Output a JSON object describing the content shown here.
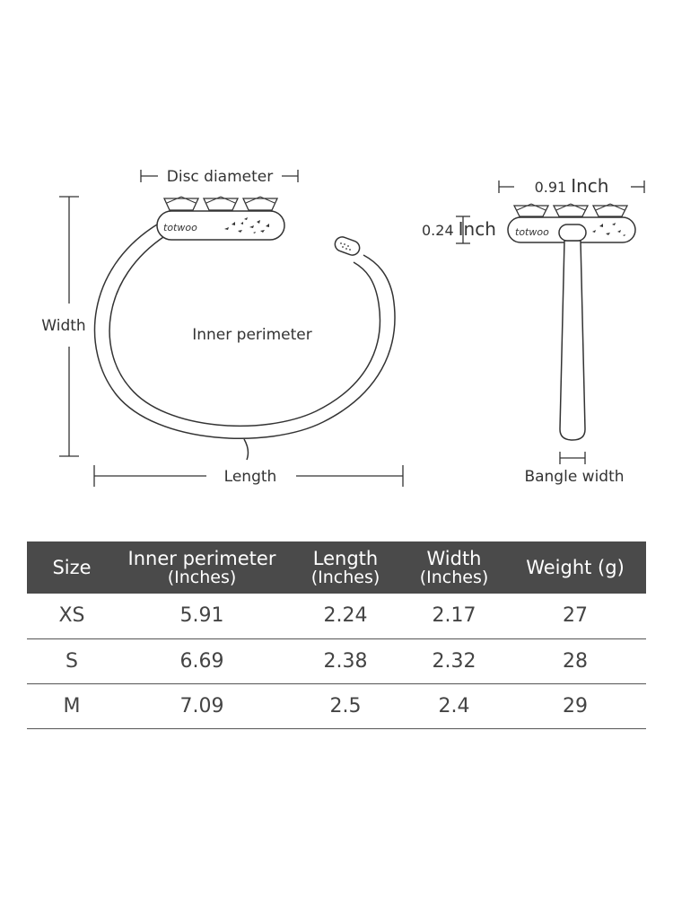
{
  "diagram": {
    "disc_diameter_label": "Disc diameter",
    "width_label": "Width",
    "inner_perimeter_label": "Inner perimeter",
    "length_label": "Length",
    "logo_text": "totwoo",
    "side_width_value": "0.91",
    "side_width_unit": "Inch",
    "side_height_value": "0.24",
    "side_height_unit": "Inch",
    "bangle_width_label": "Bangle width"
  },
  "table": {
    "headers": [
      {
        "title": "Size",
        "sub": ""
      },
      {
        "title": "Inner perimeter",
        "sub": "(Inches)"
      },
      {
        "title": "Length",
        "sub": "(Inches)"
      },
      {
        "title": "Width",
        "sub": "(Inches)"
      },
      {
        "title": "Weight (g)",
        "sub": ""
      }
    ],
    "rows": [
      [
        "XS",
        "5.91",
        "2.24",
        "2.17",
        "27"
      ],
      [
        "S",
        "6.69",
        "2.38",
        "2.32",
        "28"
      ],
      [
        "M",
        "7.09",
        "2.5",
        "2.4",
        "29"
      ]
    ]
  }
}
